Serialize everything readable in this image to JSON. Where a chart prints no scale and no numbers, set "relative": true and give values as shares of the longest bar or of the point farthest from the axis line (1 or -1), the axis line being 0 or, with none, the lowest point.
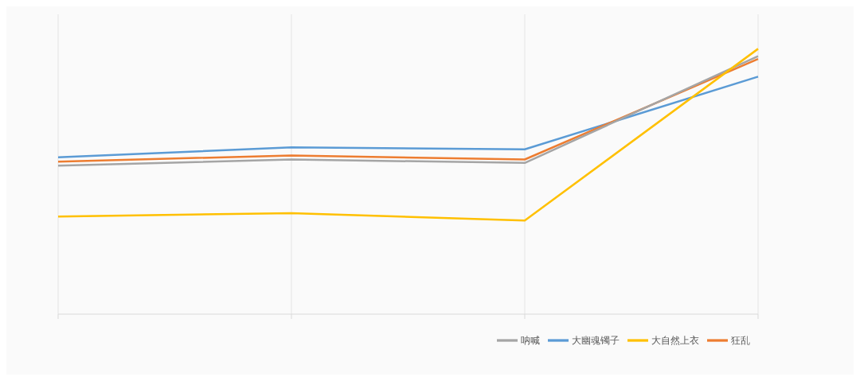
{
  "chart_data": {
    "type": "line",
    "relative": true,
    "categories": [
      null,
      null,
      null,
      null
    ],
    "grid": "x",
    "legend": "bottom right",
    "marker": "none",
    "series": [
      {
        "name": "大幽魂镯子",
        "color": "#5b9bd5",
        "values": [
          0.591,
          0.629,
          0.621,
          0.895
        ]
      },
      {
        "name": "狂乱",
        "color": "#ed7d31",
        "values": [
          0.575,
          0.598,
          0.583,
          0.962
        ]
      },
      {
        "name": "呐喊",
        "color": "#a5a5a5",
        "values": [
          0.56,
          0.583,
          0.57,
          0.972
        ]
      },
      {
        "name": "大自然上衣",
        "color": "#ffc000",
        "values": [
          0.368,
          0.381,
          0.353,
          1
        ]
      }
    ]
  }
}
